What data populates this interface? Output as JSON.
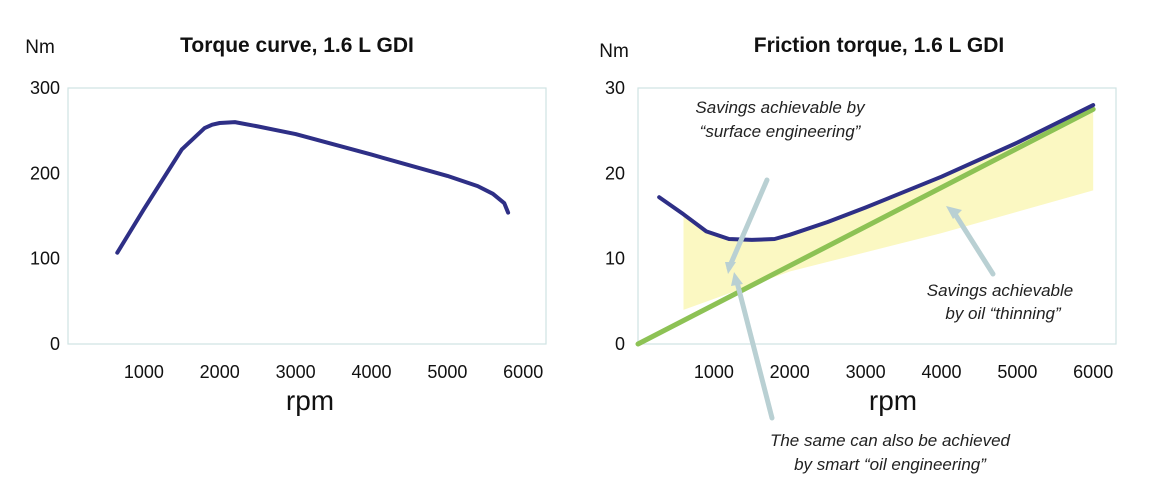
{
  "chart_data": [
    {
      "type": "line",
      "title": "Torque curve, 1.6 L GDI",
      "ylabel": "Nm",
      "xlabel": "rpm",
      "xlim": [
        0,
        6300
      ],
      "ylim": [
        0,
        300
      ],
      "xticks": [
        1000,
        2000,
        3000,
        4000,
        5000,
        6000
      ],
      "yticks": [
        0,
        100,
        200,
        300
      ],
      "grid": false,
      "series": [
        {
          "color": "#2e2f86",
          "x": [
            650,
            1000,
            1500,
            1800,
            1900,
            2000,
            2200,
            2500,
            3000,
            4000,
            5000,
            5400,
            5600,
            5750,
            5800
          ],
          "y": [
            107,
            158,
            228,
            253,
            257,
            259,
            260,
            255,
            246,
            222,
            197,
            185,
            176,
            165,
            154
          ]
        }
      ]
    },
    {
      "type": "line",
      "title": "Friction torque, 1.6 L GDI",
      "ylabel": "Nm",
      "xlabel": "rpm",
      "xlim": [
        0,
        6300
      ],
      "ylim": [
        0,
        30
      ],
      "xticks": [
        1000,
        2000,
        3000,
        4000,
        5000,
        6000
      ],
      "yticks": [
        0,
        10,
        20,
        30
      ],
      "grid": false,
      "series": [
        {
          "color": "#2e2f86",
          "x": [
            280,
            600,
            900,
            1200,
            1500,
            1800,
            2000,
            2500,
            3000,
            4000,
            5000,
            6000
          ],
          "y": [
            17.2,
            15.2,
            13.2,
            12.3,
            12.2,
            12.3,
            12.8,
            14.3,
            16.0,
            19.6,
            23.6,
            28.0
          ]
        },
        {
          "color": "#8dc255",
          "x": [
            0,
            6000
          ],
          "y": [
            0,
            27.5
          ]
        }
      ],
      "shaded_region": {
        "color": "#fbf8c2",
        "upper_x": [
          600,
          900,
          1200,
          1500,
          1800,
          2000,
          2500,
          3000,
          4000,
          5000,
          6000
        ],
        "upper_y": [
          15.2,
          13.2,
          12.3,
          12.2,
          12.3,
          12.8,
          14.3,
          16.0,
          19.6,
          23.6,
          27.5
        ],
        "lower_x": [
          600,
          2000,
          4000,
          6000
        ],
        "lower_y": [
          4.0,
          8.5,
          13.0,
          18.0
        ]
      },
      "annotations": [
        {
          "lines": [
            "Savings achievable by",
            "“surface engineering”"
          ]
        },
        {
          "lines": [
            "Savings achievable",
            "by oil “thinning”"
          ]
        },
        {
          "lines": [
            "The same can also be achieved",
            "by smart “oil engineering”"
          ]
        }
      ]
    }
  ]
}
